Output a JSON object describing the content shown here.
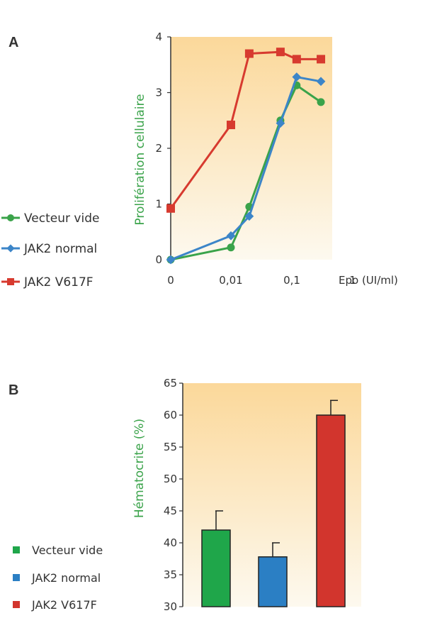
{
  "panel_a_label": "A",
  "panel_b_label": "B",
  "chart_data": [
    {
      "type": "line",
      "ylabel": "Prolifération cellulaire",
      "xlabel": "Epo (UI/ml)",
      "ylim": [
        0,
        4
      ],
      "yticks": [
        "0",
        "1",
        "2",
        "3",
        "4"
      ],
      "xtick_labels": [
        "0",
        "0,01",
        "0,1",
        "1"
      ],
      "x_scale": "log (with 0 shown at left edge)",
      "legend_position": "left",
      "series": [
        {
          "name": "Vecteur vide",
          "color": "#3aa34a",
          "marker": "circle",
          "x": [
            0,
            0.01,
            0.02,
            0.065,
            0.12,
            0.3
          ],
          "y": [
            0,
            0.22,
            0.95,
            2.5,
            3.13,
            2.83
          ]
        },
        {
          "name": "JAK2 normal",
          "color": "#3c85c8",
          "marker": "diamond",
          "x": [
            0,
            0.01,
            0.02,
            0.065,
            0.12,
            0.3
          ],
          "y": [
            0,
            0.43,
            0.78,
            2.45,
            3.28,
            3.2
          ]
        },
        {
          "name": "JAK2 V617F",
          "color": "#d73a2f",
          "marker": "square",
          "x": [
            0,
            0.01,
            0.02,
            0.065,
            0.12,
            0.3
          ],
          "y": [
            0.92,
            2.42,
            3.7,
            3.73,
            3.6,
            3.6
          ]
        }
      ]
    },
    {
      "type": "bar",
      "ylabel": "Hématocrite (%)",
      "ylim": [
        30,
        65
      ],
      "yticks": [
        "30",
        "35",
        "40",
        "45",
        "50",
        "55",
        "60",
        "65"
      ],
      "legend_position": "left",
      "categories": [
        "Vecteur vide",
        "JAK2 normal",
        "JAK2 V617F"
      ],
      "values": [
        42,
        37.8,
        60
      ],
      "errors": [
        3,
        2.2,
        2.3
      ],
      "colors": [
        "#1fa64a",
        "#2b7fc4",
        "#d2352d"
      ]
    }
  ]
}
